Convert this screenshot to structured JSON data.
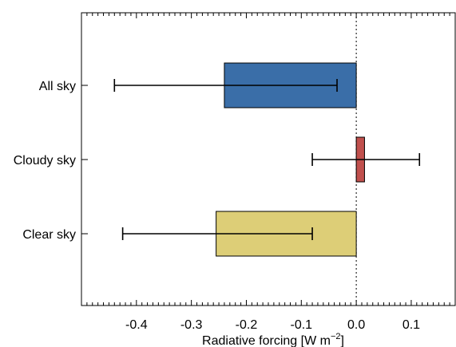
{
  "chart_data": {
    "type": "bar",
    "orientation": "horizontal",
    "categories": [
      "All sky",
      "Cloudy sky",
      "Clear sky"
    ],
    "values": [
      -0.24,
      0.015,
      -0.255
    ],
    "error_low": [
      -0.44,
      -0.08,
      -0.425
    ],
    "error_high": [
      -0.035,
      0.115,
      -0.08
    ],
    "colors": [
      "#3a6ea8",
      "#c0504d",
      "#ddce77"
    ],
    "xlabel": "Radiative forcing [W m",
    "xlabel_superscript": "−2",
    "xlabel_close": "]",
    "xlim": [
      -0.5,
      0.18
    ],
    "xticks": [
      {
        "value": -0.4,
        "label": "-0.4"
      },
      {
        "value": -0.3,
        "label": "-0.3"
      },
      {
        "value": -0.2,
        "label": "-0.2"
      },
      {
        "value": -0.1,
        "label": "-0.1"
      },
      {
        "value": 0.0,
        "label": "0.0"
      },
      {
        "value": 0.1,
        "label": "0.1"
      }
    ],
    "zero_line": "dotted",
    "grid": false
  }
}
